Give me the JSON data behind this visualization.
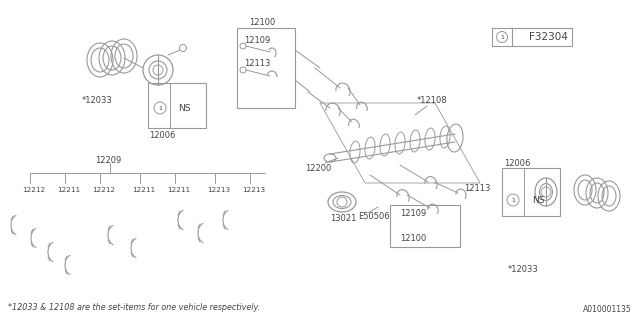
{
  "bg_color": "#ffffff",
  "line_color": "#999999",
  "text_color": "#444444",
  "title_note": "*12033 & 12108 are the set-items for one vehicle respectively.",
  "diagram_id": "F32304",
  "doc_id": "A010001135"
}
